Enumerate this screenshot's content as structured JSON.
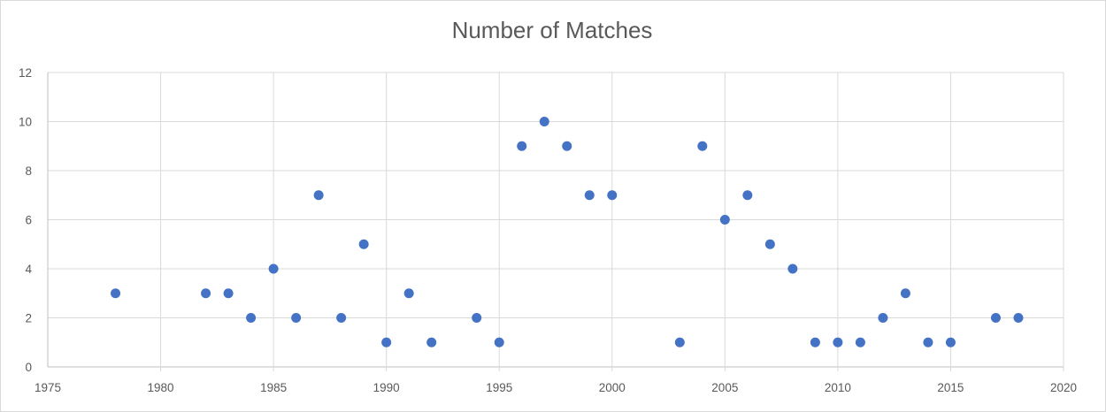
{
  "chart_data": {
    "type": "scatter",
    "title": "Number of Matches",
    "xlabel": "",
    "ylabel": "",
    "xlim": [
      1975,
      2020
    ],
    "ylim": [
      0,
      12
    ],
    "xticks": [
      1975,
      1980,
      1985,
      1990,
      1995,
      2000,
      2005,
      2010,
      2015,
      2020
    ],
    "yticks": [
      0,
      2,
      4,
      6,
      8,
      10,
      12
    ],
    "grid": true,
    "marker_color": "#4472c4",
    "points": [
      {
        "x": 1978,
        "y": 3
      },
      {
        "x": 1982,
        "y": 3
      },
      {
        "x": 1983,
        "y": 3
      },
      {
        "x": 1984,
        "y": 2
      },
      {
        "x": 1985,
        "y": 4
      },
      {
        "x": 1986,
        "y": 2
      },
      {
        "x": 1987,
        "y": 7
      },
      {
        "x": 1988,
        "y": 2
      },
      {
        "x": 1989,
        "y": 5
      },
      {
        "x": 1990,
        "y": 1
      },
      {
        "x": 1991,
        "y": 3
      },
      {
        "x": 1992,
        "y": 1
      },
      {
        "x": 1994,
        "y": 2
      },
      {
        "x": 1995,
        "y": 1
      },
      {
        "x": 1996,
        "y": 9
      },
      {
        "x": 1997,
        "y": 10
      },
      {
        "x": 1998,
        "y": 9
      },
      {
        "x": 1999,
        "y": 7
      },
      {
        "x": 2000,
        "y": 7
      },
      {
        "x": 2003,
        "y": 1
      },
      {
        "x": 2004,
        "y": 9
      },
      {
        "x": 2005,
        "y": 6
      },
      {
        "x": 2006,
        "y": 7
      },
      {
        "x": 2007,
        "y": 5
      },
      {
        "x": 2008,
        "y": 4
      },
      {
        "x": 2009,
        "y": 1
      },
      {
        "x": 2010,
        "y": 1
      },
      {
        "x": 2011,
        "y": 1
      },
      {
        "x": 2012,
        "y": 2
      },
      {
        "x": 2013,
        "y": 3
      },
      {
        "x": 2014,
        "y": 1
      },
      {
        "x": 2015,
        "y": 1
      },
      {
        "x": 2017,
        "y": 2
      },
      {
        "x": 2018,
        "y": 2
      }
    ]
  }
}
